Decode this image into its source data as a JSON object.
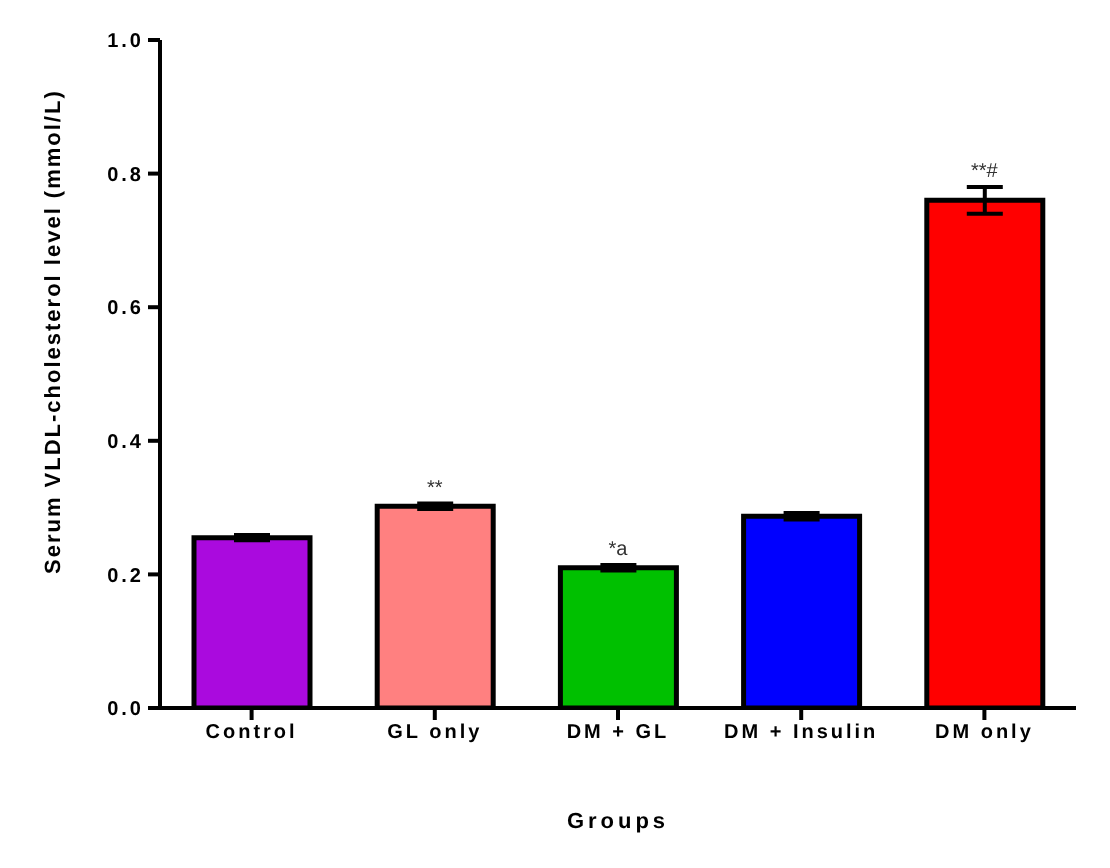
{
  "chart_data": {
    "type": "bar",
    "xlabel": "Groups",
    "ylabel": "Serum VLDL-cholesterol level (mmol/L)",
    "categories": [
      "Control",
      "GL only",
      "DM + GL",
      "DM + Insulin",
      "DM only"
    ],
    "values": [
      0.255,
      0.302,
      0.21,
      0.287,
      0.76
    ],
    "errors": [
      0.004,
      0.004,
      0.004,
      0.005,
      0.02
    ],
    "colors": [
      "#aa0ade",
      "#ff8080",
      "#00c000",
      "#0000ff",
      "#ff0000"
    ],
    "ylim": [
      0,
      1
    ],
    "yticks": [
      {
        "value": 0,
        "label": "0.0"
      },
      {
        "value": 0.2,
        "label": "0.2"
      },
      {
        "value": 0.4,
        "label": "0.4"
      },
      {
        "value": 0.6,
        "label": "0.6"
      },
      {
        "value": 0.8,
        "label": "0.8"
      },
      {
        "value": 1,
        "label": "1.0"
      }
    ],
    "grid": false,
    "legend": false,
    "annotations": [
      {
        "text": "**",
        "x": "GL only",
        "y": 0.306
      },
      {
        "text": "*a",
        "x": "DM + GL",
        "y": 0.214
      },
      {
        "text": "**#",
        "x": "DM only",
        "y": 0.78
      }
    ]
  }
}
